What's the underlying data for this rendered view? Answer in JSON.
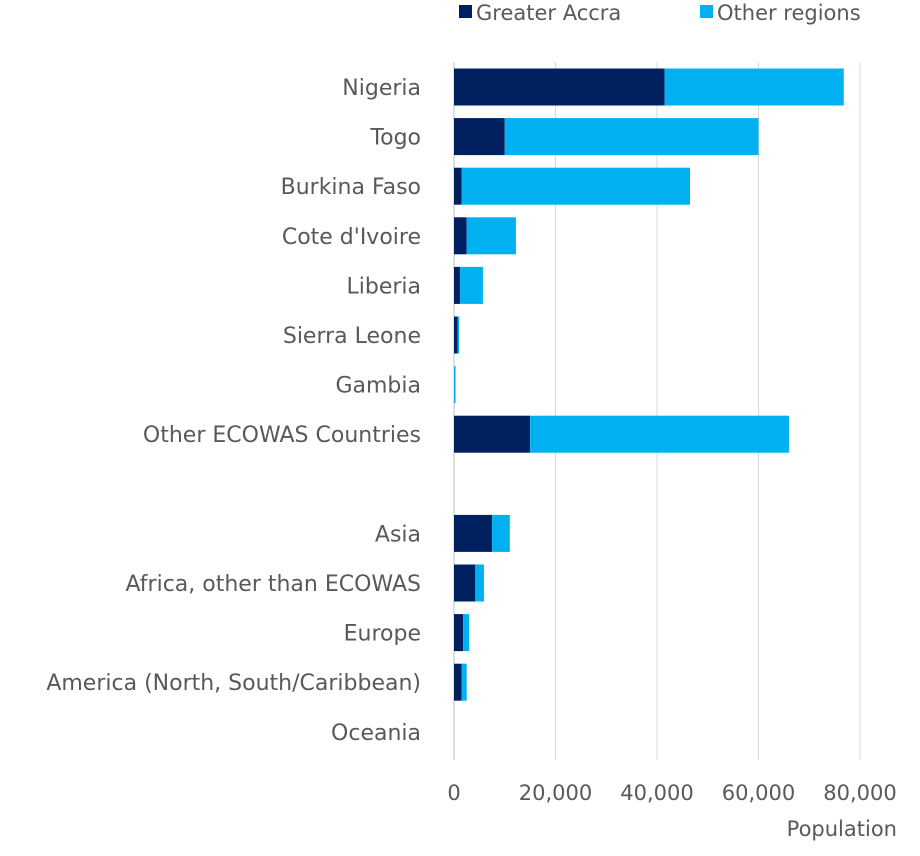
{
  "chart_data": {
    "type": "bar",
    "orientation": "horizontal",
    "stacked": true,
    "categories": [
      "Nigeria",
      "Togo",
      "Burkina Faso",
      "Cote d'Ivoire",
      "Liberia",
      "Sierra Leone",
      "Gambia",
      "Other ECOWAS Countries",
      "",
      "Asia",
      "Africa, other than ECOWAS",
      "Europe",
      "America (North, South/Caribbean)",
      "Oceania"
    ],
    "series": [
      {
        "name": "Greater Accra",
        "color": "#002060",
        "values": [
          41500,
          10000,
          1500,
          2500,
          1200,
          700,
          0,
          15000,
          null,
          7500,
          4200,
          1800,
          1500,
          0
        ]
      },
      {
        "name": "Other regions",
        "color": "#00B0F0",
        "values": [
          35300,
          50000,
          45000,
          9700,
          4500,
          200,
          300,
          51000,
          null,
          3500,
          1700,
          1200,
          1000,
          0
        ]
      }
    ],
    "xlabel": "Population",
    "ylabel": "",
    "xlim": [
      0,
      80000
    ],
    "xticks": [
      0,
      20000,
      40000,
      60000,
      80000
    ],
    "xtick_labels": [
      "0",
      "20,000",
      "40,000",
      "60,000",
      "80,000"
    ],
    "grid": "vertical",
    "legend_position": "top-right",
    "gridline_color": "#D9D9D9"
  }
}
